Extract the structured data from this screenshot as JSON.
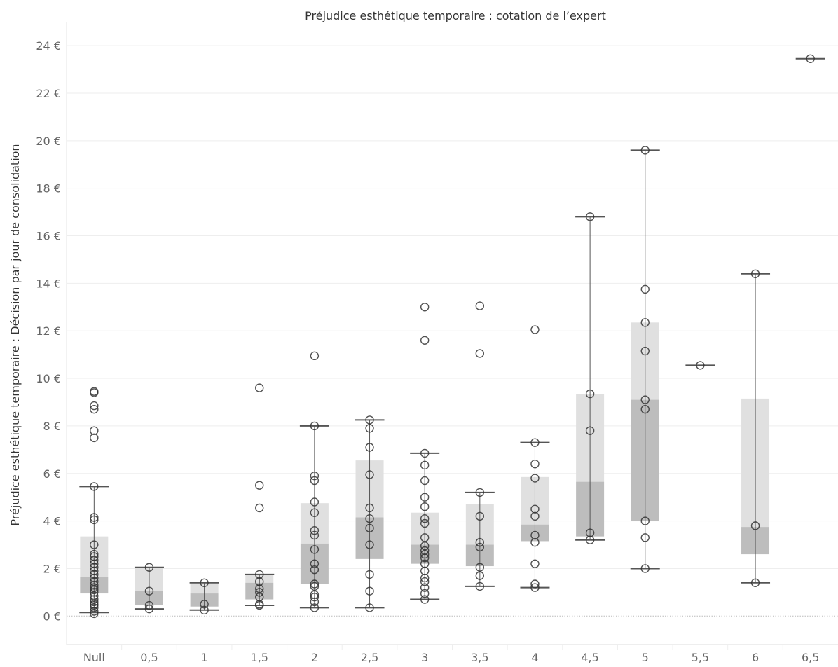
{
  "chart_data": {
    "type": "box",
    "title": "Préjudice esthétique temporaire : cotation de l’expert",
    "xlabel": "",
    "ylabel": "Préjudice esthétique temporaire : Décision par jour de consolidation",
    "ylim": [
      -1.2,
      24.8
    ],
    "yticks": [
      0,
      2,
      4,
      6,
      8,
      10,
      12,
      14,
      16,
      18,
      20,
      22,
      24
    ],
    "ytick_labels": [
      "0 €",
      "2 €",
      "4 €",
      "6 €",
      "8 €",
      "10 €",
      "12 €",
      "14 €",
      "16 €",
      "18 €",
      "20 €",
      "22 €",
      "24 €"
    ],
    "grid": true,
    "categories": [
      "Null",
      "0,5",
      "1",
      "1,5",
      "2",
      "2,5",
      "3",
      "3,5",
      "4",
      "4,5",
      "5",
      "5,5",
      "6",
      "6,5"
    ],
    "boxes": [
      {
        "category": "Null",
        "whisker_low": 0.15,
        "q1": 0.95,
        "median": 1.65,
        "q3": 3.35,
        "whisker_high": 5.45,
        "points": [
          0.1,
          0.2,
          0.35,
          0.45,
          0.5,
          0.6,
          0.7,
          0.85,
          1.0,
          1.1,
          1.2,
          1.3,
          1.45,
          1.6,
          1.75,
          1.9,
          2.05,
          2.2,
          2.35,
          2.5,
          2.6,
          3.0,
          4.05,
          4.15,
          5.45,
          7.5,
          7.8,
          8.7,
          8.85,
          9.4,
          9.45
        ]
      },
      {
        "category": "0,5",
        "whisker_low": 0.3,
        "q1": 0.45,
        "median": 1.05,
        "q3": 2.05,
        "whisker_high": 2.05,
        "points": [
          0.3,
          0.45,
          1.05,
          2.05
        ]
      },
      {
        "category": "1",
        "whisker_low": 0.25,
        "q1": 0.4,
        "median": 0.95,
        "q3": 1.4,
        "whisker_high": 1.4,
        "points": [
          0.25,
          0.5,
          1.4
        ]
      },
      {
        "category": "1,5",
        "whisker_low": 0.45,
        "q1": 0.7,
        "median": 1.4,
        "q3": 1.75,
        "whisker_high": 1.75,
        "points": [
          0.45,
          0.5,
          0.8,
          1.0,
          1.15,
          1.45,
          1.75,
          4.55,
          5.5,
          9.6
        ]
      },
      {
        "category": "2",
        "whisker_low": 0.35,
        "q1": 1.35,
        "median": 3.05,
        "q3": 4.75,
        "whisker_high": 8.0,
        "points": [
          0.35,
          0.6,
          0.8,
          0.9,
          1.25,
          1.35,
          1.95,
          2.2,
          2.8,
          3.4,
          3.6,
          4.35,
          4.8,
          5.7,
          5.9,
          8.0,
          10.95
        ]
      },
      {
        "category": "2,5",
        "whisker_low": 0.35,
        "q1": 2.4,
        "median": 4.15,
        "q3": 6.55,
        "whisker_high": 8.25,
        "points": [
          0.35,
          1.05,
          1.75,
          3.0,
          3.7,
          4.1,
          4.55,
          5.95,
          7.1,
          7.9,
          8.25
        ]
      },
      {
        "category": "3",
        "whisker_low": 0.7,
        "q1": 2.2,
        "median": 3.0,
        "q3": 4.35,
        "whisker_high": 6.85,
        "points": [
          0.7,
          0.95,
          1.2,
          1.45,
          1.6,
          1.9,
          2.2,
          2.45,
          2.6,
          2.75,
          2.95,
          3.3,
          3.9,
          4.1,
          4.6,
          5.0,
          5.7,
          6.35,
          6.85,
          11.6,
          13.0
        ]
      },
      {
        "category": "3,5",
        "whisker_low": 1.25,
        "q1": 2.1,
        "median": 3.0,
        "q3": 4.7,
        "whisker_high": 5.2,
        "points": [
          1.25,
          1.7,
          2.05,
          2.9,
          3.1,
          4.2,
          5.2,
          11.05,
          13.05
        ]
      },
      {
        "category": "4",
        "whisker_low": 1.2,
        "q1": 3.15,
        "median": 3.85,
        "q3": 5.85,
        "whisker_high": 7.3,
        "points": [
          1.2,
          1.35,
          2.2,
          3.1,
          3.4,
          4.2,
          4.5,
          5.8,
          6.4,
          7.3,
          12.05
        ]
      },
      {
        "category": "4,5",
        "whisker_low": 3.2,
        "q1": 3.35,
        "median": 5.65,
        "q3": 9.35,
        "whisker_high": 16.8,
        "points": [
          3.2,
          3.5,
          7.8,
          9.35,
          16.8
        ]
      },
      {
        "category": "5",
        "whisker_low": 2.0,
        "q1": 4.0,
        "median": 9.1,
        "q3": 12.35,
        "whisker_high": 19.6,
        "points": [
          2.0,
          3.3,
          4.0,
          8.7,
          9.1,
          11.15,
          12.35,
          13.75,
          19.6
        ]
      },
      {
        "category": "5,5",
        "whisker_low": 10.55,
        "q1": 10.55,
        "median": 10.55,
        "q3": 10.55,
        "whisker_high": 10.55,
        "points": [
          10.55
        ]
      },
      {
        "category": "6",
        "whisker_low": 1.4,
        "q1": 2.6,
        "median": 3.75,
        "q3": 9.15,
        "whisker_high": 14.4,
        "points": [
          1.4,
          3.8,
          14.4
        ]
      },
      {
        "category": "6,5",
        "whisker_low": 23.45,
        "q1": 23.45,
        "median": 23.45,
        "q3": 23.45,
        "whisker_high": 23.45,
        "points": [
          23.45
        ]
      }
    ],
    "colors": {
      "box_upper": "#e0e0e0",
      "box_lower": "#bdbdbd",
      "whisker": "#555555",
      "marker": "#333333",
      "gridline": "#eeeeee",
      "zero_line": "#bbbbbb",
      "text": "#666666"
    }
  }
}
